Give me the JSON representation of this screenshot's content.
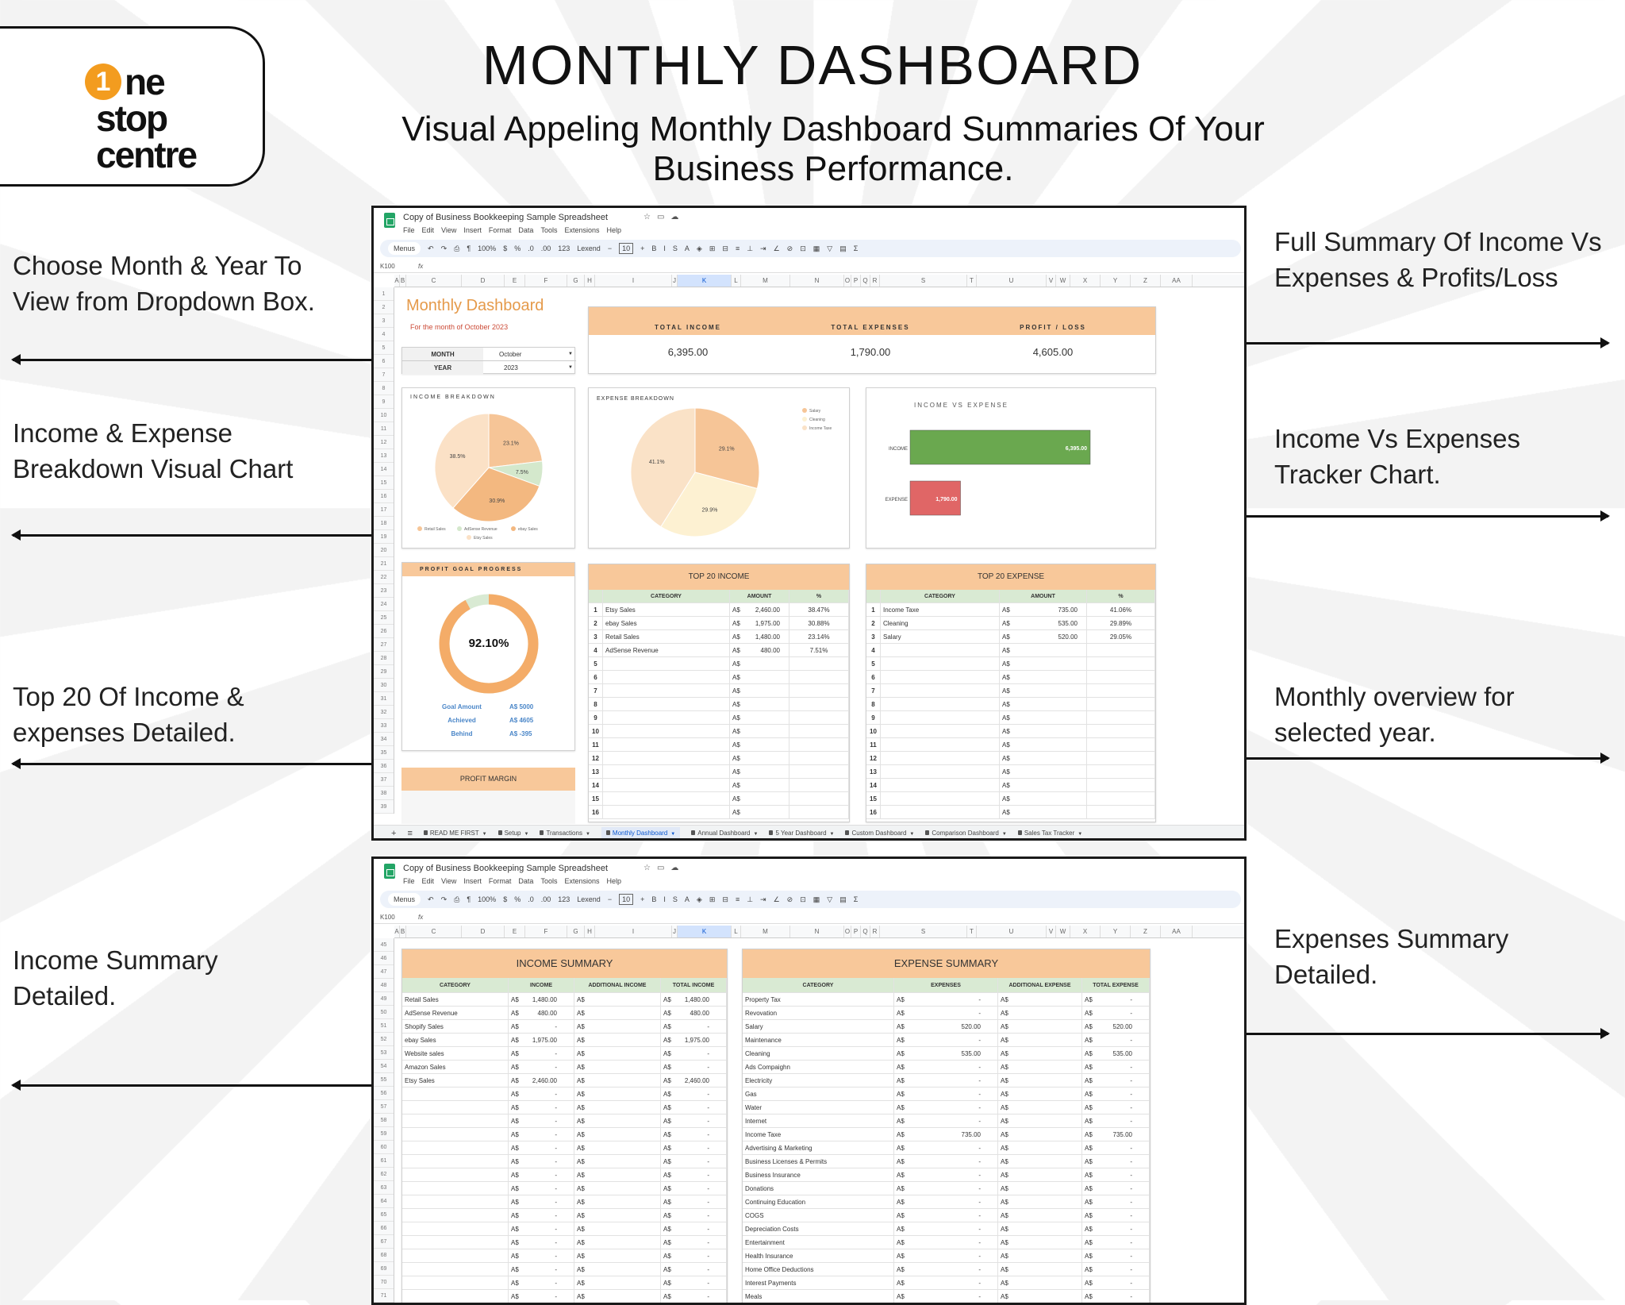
{
  "brand": {
    "logo_digit": "1",
    "logo_line1": "ne",
    "logo_line2": "stop",
    "logo_line3": "centre",
    "logo_color": "#f39c1f"
  },
  "header": {
    "title": "MONTHLY DASHBOARD",
    "subtitle": "Visual Appeling Monthly Dashboard Summaries Of Your Business Performance."
  },
  "callouts": {
    "left": [
      "Choose Month & Year To View from Dropdown Box.",
      "Income & Expense Breakdown Visual Chart",
      "Top 20 Of Income & expenses Detailed.",
      "Income Summary Detailed."
    ],
    "right": [
      "Full Summary Of Income Vs Expenses & Profits/Loss",
      "Income Vs Expenses Tracker Chart.",
      "Monthly overview for selected year.",
      "Expenses Summary Detailed."
    ]
  },
  "sheet_ui": {
    "doc_title": "Copy of Business Bookkeeping Sample Spreadsheet",
    "menu": [
      "File",
      "Edit",
      "View",
      "Insert",
      "Format",
      "Data",
      "Tools",
      "Extensions",
      "Help"
    ],
    "toolbar": {
      "search": "Menus",
      "zoom": "100%",
      "currency": "$",
      "percent": "%",
      "dec_less": ".0",
      "dec_more": ".00",
      "number_format": "123",
      "font": "Lexend",
      "font_size": "10",
      "bold": "B",
      "italic": "I",
      "strike": "S",
      "text_color": "A",
      "sum": "Σ"
    },
    "cell_ref": "K100",
    "fx": "fx",
    "columns": [
      "A",
      "B",
      "C",
      "D",
      "E",
      "F",
      "G",
      "H",
      "I",
      "J",
      "K",
      "L",
      "M",
      "N",
      "O",
      "P",
      "Q",
      "R",
      "S",
      "T",
      "U",
      "V",
      "W",
      "X",
      "Y",
      "Z",
      "AA"
    ],
    "selected_column": "K",
    "tabs": [
      "READ ME FIRST",
      "Setup",
      "Transactions",
      "Monthly Dashboard",
      "Annual Dashboard",
      "5 Year Dashboard",
      "Custom Dashboard",
      "Comparison Dashboard",
      "Sales Tax Tracker"
    ],
    "active_tab": "Monthly Dashboard",
    "add_sheet": "+",
    "all_sheets": "≡"
  },
  "dashboard": {
    "rows_start": 1,
    "rows_end": 39,
    "title": "Monthly Dashboard",
    "subtitle": "For the month of October 2023",
    "month_label": "MONTH",
    "month_value": "October",
    "year_label": "YEAR",
    "year_value": "2023",
    "totals": {
      "income_label": "TOTAL INCOME",
      "income_value": "6,395.00",
      "expenses_label": "TOTAL EXPENSES",
      "expenses_value": "1,790.00",
      "profit_label": "PROFIT / LOSS",
      "profit_value": "4,605.00"
    },
    "profit_goal": {
      "title": "PROFIT GOAL PROGRESS",
      "percent_label": "92.10%",
      "percent": 92.1,
      "goal_label": "Goal  Amount",
      "goal_value": "A$ 5000",
      "achieved_label": "Achieved",
      "achieved_value": "A$ 4605",
      "behind_label": "Behind",
      "behind_value": "A$ -395",
      "colors": {
        "progress": "#f4ac68",
        "remaining": "#d9ead3"
      }
    },
    "profit_margin_label": "PROFIT MARGIN",
    "top_income": {
      "title": "TOP 20 INCOME",
      "headers": [
        "CATEGORY",
        "AMOUNT",
        "%"
      ],
      "currency": "A$",
      "rows": [
        [
          "1",
          "Etsy Sales",
          "2,460.00",
          "38.47%"
        ],
        [
          "2",
          "ebay Sales",
          "1,975.00",
          "30.88%"
        ],
        [
          "3",
          "Retail Sales",
          "1,480.00",
          "23.14%"
        ],
        [
          "4",
          "AdSense Revenue",
          "480.00",
          "7.51%"
        ],
        [
          "5",
          "",
          "",
          ""
        ],
        [
          "6",
          "",
          "",
          ""
        ],
        [
          "7",
          "",
          "",
          ""
        ],
        [
          "8",
          "",
          "",
          ""
        ],
        [
          "9",
          "",
          "",
          ""
        ],
        [
          "10",
          "",
          "",
          ""
        ],
        [
          "11",
          "",
          "",
          ""
        ],
        [
          "12",
          "",
          "",
          ""
        ],
        [
          "13",
          "",
          "",
          ""
        ],
        [
          "14",
          "",
          "",
          ""
        ],
        [
          "15",
          "",
          "",
          ""
        ],
        [
          "16",
          "",
          "",
          ""
        ]
      ]
    },
    "top_expense": {
      "title": "TOP 20 EXPENSE",
      "headers": [
        "CATEGORY",
        "AMOUNT",
        "%"
      ],
      "currency": "A$",
      "rows": [
        [
          "1",
          "Income Taxe",
          "735.00",
          "41.06%"
        ],
        [
          "2",
          "Cleaning",
          "535.00",
          "29.89%"
        ],
        [
          "3",
          "Salary",
          "520.00",
          "29.05%"
        ],
        [
          "4",
          "",
          "",
          ""
        ],
        [
          "5",
          "",
          "",
          ""
        ],
        [
          "6",
          "",
          "",
          ""
        ],
        [
          "7",
          "",
          "",
          ""
        ],
        [
          "8",
          "",
          "",
          ""
        ],
        [
          "9",
          "",
          "",
          ""
        ],
        [
          "10",
          "",
          "",
          ""
        ],
        [
          "11",
          "",
          "",
          ""
        ],
        [
          "12",
          "",
          "",
          ""
        ],
        [
          "13",
          "",
          "",
          ""
        ],
        [
          "14",
          "",
          "",
          ""
        ],
        [
          "15",
          "",
          "",
          ""
        ],
        [
          "16",
          "",
          "",
          ""
        ]
      ]
    }
  },
  "chart_data": [
    {
      "type": "pie",
      "title": "INCOME BREAKDOWN",
      "categories": [
        "Retail Sales",
        "AdSense Revenue",
        "ebay Sales",
        "Etsy Sales"
      ],
      "values": [
        23.1,
        7.5,
        30.9,
        38.5
      ],
      "labels": [
        "23.1%",
        "7.5%",
        "30.9%",
        "38.5%"
      ],
      "colors": [
        "#f6c597",
        "#d4e8cc",
        "#f3b880",
        "#fbe1c6"
      ],
      "legend": "bottom"
    },
    {
      "type": "pie",
      "title": "EXPENSE BREAKDOWN",
      "categories": [
        "Salary",
        "Cleaning",
        "Income Taxe"
      ],
      "values": [
        29.1,
        29.9,
        41.1
      ],
      "labels": [
        "29.1%",
        "29.9%",
        "41.1%"
      ],
      "colors": [
        "#f6c597",
        "#fdf1d2",
        "#fae2c7"
      ],
      "legend": "right"
    },
    {
      "type": "bar",
      "orientation": "horizontal",
      "title": "INCOME VS EXPENSE",
      "categories": [
        "INCOME",
        "EXPENSE"
      ],
      "values": [
        6395,
        1790
      ],
      "labels": [
        "6,395.00",
        "1,790.00"
      ],
      "colors": [
        "#6aa84f",
        "#e06666"
      ],
      "xlim": [
        0,
        8000
      ]
    }
  ],
  "summaries": {
    "rows_start": 45,
    "rows_end": 71,
    "currency": "A$",
    "income": {
      "title": "INCOME SUMMARY",
      "headers": [
        "CATEGORY",
        "INCOME",
        "ADDITIONAL INCOME",
        "TOTAL INCOME"
      ],
      "rows": [
        [
          "Retail Sales",
          "1,480.00",
          "",
          "1,480.00"
        ],
        [
          "AdSense Revenue",
          "480.00",
          "",
          "480.00"
        ],
        [
          "Shopify Sales",
          "-",
          "",
          "-"
        ],
        [
          "ebay Sales",
          "1,975.00",
          "",
          "1,975.00"
        ],
        [
          "Website sales",
          "-",
          "",
          "-"
        ],
        [
          "Amazon Sales",
          "-",
          "",
          "-"
        ],
        [
          "Etsy Sales",
          "2,460.00",
          "",
          "2,460.00"
        ],
        [
          "",
          "-",
          "",
          "-"
        ],
        [
          "",
          "-",
          "",
          "-"
        ],
        [
          "",
          "-",
          "",
          "-"
        ],
        [
          "",
          "-",
          "",
          "-"
        ],
        [
          "",
          "-",
          "",
          "-"
        ],
        [
          "",
          "-",
          "",
          "-"
        ],
        [
          "",
          "-",
          "",
          "-"
        ],
        [
          "",
          "-",
          "",
          "-"
        ],
        [
          "",
          "-",
          "",
          "-"
        ],
        [
          "",
          "-",
          "",
          "-"
        ],
        [
          "",
          "-",
          "",
          "-"
        ],
        [
          "",
          "-",
          "",
          "-"
        ],
        [
          "",
          "-",
          "",
          "-"
        ],
        [
          "",
          "-",
          "",
          "-"
        ],
        [
          "",
          "-",
          "",
          "-"
        ],
        [
          "",
          "-",
          "",
          "-"
        ]
      ]
    },
    "expense": {
      "title": "EXPENSE SUMMARY",
      "headers": [
        "CATEGORY",
        "EXPENSES",
        "ADDITIONAL EXPENSE",
        "TOTAL EXPENSE"
      ],
      "rows": [
        [
          "Property Tax",
          "-",
          "",
          "-"
        ],
        [
          "Revovation",
          "-",
          "",
          "-"
        ],
        [
          "Salary",
          "520.00",
          "",
          "520.00"
        ],
        [
          "Maintenance",
          "-",
          "",
          "-"
        ],
        [
          "Cleaning",
          "535.00",
          "",
          "535.00"
        ],
        [
          "Ads Compaighn",
          "-",
          "",
          "-"
        ],
        [
          "Electricity",
          "-",
          "",
          "-"
        ],
        [
          "Gas",
          "-",
          "",
          "-"
        ],
        [
          "Water",
          "-",
          "",
          "-"
        ],
        [
          "Internet",
          "-",
          "",
          "-"
        ],
        [
          "Income Taxe",
          "735.00",
          "",
          "735.00"
        ],
        [
          "Advertising & Marketing",
          "-",
          "",
          "-"
        ],
        [
          "Business Licenses & Permits",
          "-",
          "",
          "-"
        ],
        [
          "Business Insurance",
          "-",
          "",
          "-"
        ],
        [
          "Donations",
          "-",
          "",
          "-"
        ],
        [
          "Continuing Education",
          "-",
          "",
          "-"
        ],
        [
          "COGS",
          "-",
          "",
          "-"
        ],
        [
          "Depreciation Costs",
          "-",
          "",
          "-"
        ],
        [
          "Entertainment",
          "-",
          "",
          "-"
        ],
        [
          "Health Insurance",
          "-",
          "",
          "-"
        ],
        [
          "Home Office Deductions",
          "-",
          "",
          "-"
        ],
        [
          "Interest Payments",
          "-",
          "",
          "-"
        ],
        [
          "Meals",
          "-",
          "",
          "-"
        ]
      ]
    }
  },
  "colors": {
    "header_orange": "#f8c89a",
    "header_green": "#d9ead3",
    "title_orange": "#e59a4a",
    "subtitle_red": "#cc4b37",
    "goal_blue": "#4a86c8"
  }
}
